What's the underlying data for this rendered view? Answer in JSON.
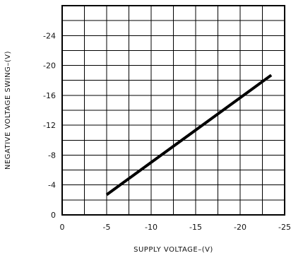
{
  "chart_data": {
    "type": "line",
    "xlabel": "SUPPLY VOLTAGE–(V)",
    "ylabel": "NEGATIVE VOLTAGE SWING–(V)",
    "x_magnitude_range": [
      0,
      25
    ],
    "y_magnitude_range": [
      0,
      28
    ],
    "x_ticks": [
      0,
      -5,
      -10,
      -15,
      -20,
      -25
    ],
    "x_tick_labels": [
      "0",
      "-5",
      "-10",
      "-15",
      "-20",
      "-25"
    ],
    "y_ticks": [
      0,
      -4,
      -8,
      -12,
      -16,
      -20,
      -24
    ],
    "y_tick_labels": [
      "0",
      "-4",
      "-8",
      "-12",
      "-16",
      "-20",
      "-24"
    ],
    "x_minor_step": 2.5,
    "y_minor_step": 2,
    "grid": true,
    "series": [
      {
        "x": [
          -5,
          -23.5
        ],
        "y": [
          -2.7,
          -18.7
        ],
        "color": "#000000"
      }
    ]
  }
}
